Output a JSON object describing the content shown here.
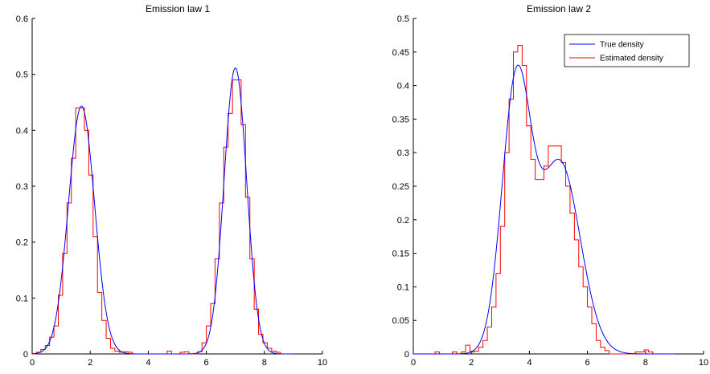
{
  "chart_data": [
    {
      "type": "line",
      "title": "Emission law 1",
      "xlabel": "",
      "ylabel": "",
      "xlim": [
        0,
        10
      ],
      "ylim": [
        0,
        0.6
      ],
      "xticks": [
        0,
        2,
        4,
        6,
        8,
        10
      ],
      "yticks": [
        0,
        0.1,
        0.2,
        0.3,
        0.4,
        0.5,
        0.6
      ],
      "ytick_labels": [
        "0",
        "0.1",
        "0.2",
        "0.3",
        "0.4",
        "0.5",
        "0.6"
      ],
      "grid": false,
      "legend": null,
      "series": [
        {
          "kind": "curve",
          "color": "#0000ff",
          "components": [
            {
              "weight": 0.5,
              "mean": 1.7,
              "sd": 0.45
            },
            {
              "weight": 0.5,
              "mean": 7.0,
              "sd": 0.39
            }
          ],
          "x_range": [
            0,
            9
          ]
        },
        {
          "kind": "step",
          "color": "#ff0000",
          "edges": [
            0,
            0.15,
            0.3,
            0.45,
            0.6,
            0.75,
            0.9,
            1.05,
            1.2,
            1.35,
            1.5,
            1.65,
            1.8,
            1.95,
            2.1,
            2.25,
            2.4,
            2.55,
            2.7,
            2.85,
            3.0,
            3.15,
            3.3,
            3.45,
            3.6,
            3.75,
            3.9,
            4.05,
            4.2,
            4.35,
            4.5,
            4.65,
            4.8,
            4.95,
            5.1,
            5.25,
            5.4,
            5.55,
            5.7,
            5.85,
            6.0,
            6.15,
            6.3,
            6.45,
            6.6,
            6.75,
            6.9,
            7.05,
            7.2,
            7.35,
            7.5,
            7.65,
            7.8,
            7.95,
            8.1,
            8.25,
            8.4,
            8.55,
            8.7,
            8.85,
            9.0
          ],
          "heights": [
            0,
            0.003,
            0.008,
            0.015,
            0.03,
            0.05,
            0.105,
            0.18,
            0.27,
            0.35,
            0.44,
            0.44,
            0.4,
            0.32,
            0.21,
            0.11,
            0.06,
            0.028,
            0.01,
            0.005,
            0.003,
            0.004,
            0.003,
            0,
            0,
            0,
            0,
            0,
            0,
            0,
            0,
            0.005,
            0,
            0,
            0.003,
            0.004,
            0,
            0,
            0.004,
            0.02,
            0.05,
            0.09,
            0.17,
            0.27,
            0.37,
            0.43,
            0.49,
            0.49,
            0.41,
            0.28,
            0.17,
            0.08,
            0.035,
            0.02,
            0.01,
            0.005,
            0.003,
            0,
            0,
            0
          ]
        }
      ]
    },
    {
      "type": "line",
      "title": "Emission law 2",
      "xlabel": "",
      "ylabel": "",
      "xlim": [
        0,
        10
      ],
      "ylim": [
        0,
        0.5
      ],
      "xticks": [
        0,
        2,
        4,
        6,
        8,
        10
      ],
      "yticks": [
        0,
        0.05,
        0.1,
        0.15,
        0.2,
        0.25,
        0.3,
        0.35,
        0.4,
        0.45,
        0.5
      ],
      "ytick_labels": [
        "0",
        "0.05",
        "0.1",
        "0.15",
        "0.2",
        "0.25",
        "0.3",
        "0.35",
        "0.4",
        "0.45",
        "0.5"
      ],
      "grid": false,
      "legend": {
        "placement": "top-right",
        "entries": [
          {
            "label": "True density",
            "color": "#0000ff"
          },
          {
            "label": "Estimated density",
            "color": "#ff0000"
          }
        ]
      },
      "series": [
        {
          "kind": "curve",
          "color": "#0000ff",
          "components": [
            {
              "weight": 0.5,
              "mean": 3.55,
              "sd": 0.5
            },
            {
              "weight": 0.5,
              "mean": 5.05,
              "sd": 0.7
            }
          ],
          "x_range": [
            0,
            9
          ]
        },
        {
          "kind": "step",
          "color": "#ff0000",
          "edges": [
            0,
            0.15,
            0.3,
            0.45,
            0.6,
            0.75,
            0.9,
            1.05,
            1.2,
            1.35,
            1.5,
            1.65,
            1.8,
            1.95,
            2.1,
            2.25,
            2.4,
            2.55,
            2.7,
            2.85,
            3.0,
            3.15,
            3.3,
            3.45,
            3.6,
            3.75,
            3.9,
            4.05,
            4.2,
            4.35,
            4.5,
            4.65,
            4.8,
            4.95,
            5.1,
            5.25,
            5.4,
            5.55,
            5.7,
            5.85,
            6.0,
            6.15,
            6.3,
            6.45,
            6.6,
            6.75,
            6.9,
            7.05,
            7.2,
            7.35,
            7.5,
            7.65,
            7.8,
            7.95,
            8.1,
            8.25,
            8.4,
            8.55,
            8.7,
            8.85,
            9.0
          ],
          "heights": [
            0,
            0,
            0,
            0,
            0,
            0.003,
            0,
            0,
            0,
            0.003,
            0,
            0.003,
            0.013,
            0.003,
            0.004,
            0.01,
            0.02,
            0.04,
            0.07,
            0.12,
            0.19,
            0.3,
            0.38,
            0.45,
            0.46,
            0.43,
            0.34,
            0.29,
            0.26,
            0.26,
            0.28,
            0.31,
            0.31,
            0.31,
            0.285,
            0.25,
            0.21,
            0.17,
            0.13,
            0.1,
            0.07,
            0.045,
            0.02,
            0.01,
            0.005,
            0,
            0,
            0,
            0,
            0,
            0,
            0.003,
            0.003,
            0.006,
            0.003,
            0,
            0,
            0,
            0,
            0
          ]
        }
      ]
    }
  ]
}
